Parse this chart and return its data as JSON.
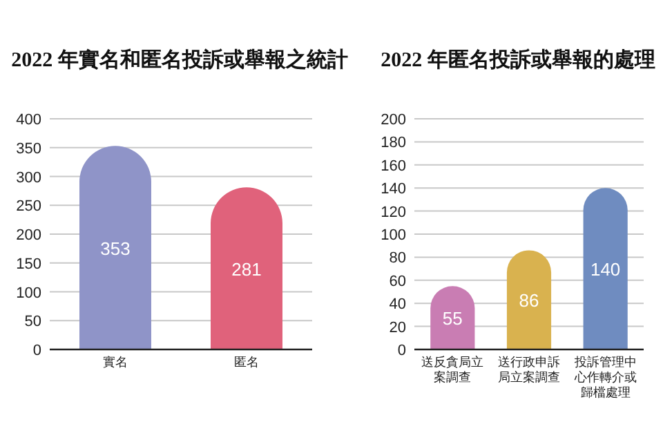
{
  "chart_data": [
    {
      "type": "bar",
      "title": "2022 年實名和匿名投訴或舉報之統計",
      "categories": [
        "實名",
        "匿名"
      ],
      "values": [
        353,
        281
      ],
      "colors": [
        "#8f94c8",
        "#e0627b"
      ],
      "ylim": [
        0,
        400
      ],
      "yticks": [
        0,
        50,
        100,
        150,
        200,
        250,
        300,
        350,
        400
      ],
      "grid": "y",
      "data_labels": true
    },
    {
      "type": "bar",
      "title": "2022 年匿名投訴或舉報的處理",
      "categories": [
        "送反貪局立案調查",
        "送行政申訴局立案調查",
        "投訴管理中心作轉介或歸檔處理"
      ],
      "values": [
        55,
        86,
        140
      ],
      "colors": [
        "#c97db3",
        "#d9b24f",
        "#6f8cc0"
      ],
      "ylim": [
        0,
        200
      ],
      "yticks": [
        0,
        20,
        40,
        60,
        80,
        100,
        120,
        140,
        160,
        180,
        200
      ],
      "grid": "y",
      "data_labels": true
    }
  ]
}
